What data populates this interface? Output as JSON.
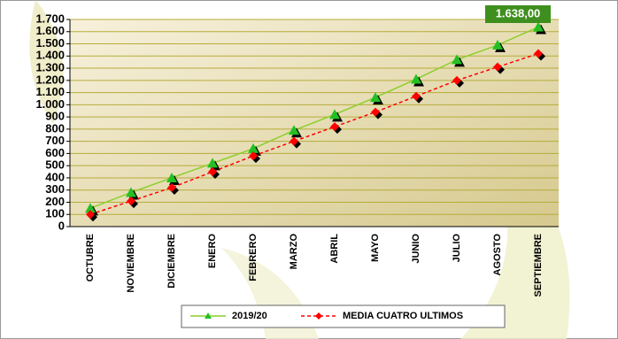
{
  "chart_data": {
    "type": "line",
    "categories": [
      "OCTUBRE",
      "NOVIEMBRE",
      "DICIEMBRE",
      "ENERO",
      "FEBRERO",
      "MARZO",
      "ABRIL",
      "MAYO",
      "JUNIO",
      "JULIO",
      "AGOSTO",
      "SEPTIEMBRE"
    ],
    "series": [
      {
        "name": "2019/20",
        "color": "#8ccf2a",
        "marker_color": "#22c022",
        "dashed": false,
        "values": [
          150,
          280,
          400,
          520,
          640,
          790,
          920,
          1060,
          1210,
          1370,
          1490,
          1638
        ],
        "value_labels": [
          null,
          null,
          null,
          null,
          null,
          null,
          null,
          null,
          null,
          null,
          null,
          "1.638,00"
        ]
      },
      {
        "name": "MEDIA CUATRO ULTIMOS",
        "color": "#ff0000",
        "marker_color": "#ff0000",
        "dashed": true,
        "values": [
          100,
          210,
          320,
          450,
          580,
          700,
          820,
          940,
          1070,
          1200,
          1310,
          1420
        ]
      }
    ],
    "ylim": [
      0,
      1700
    ],
    "yticks": [
      0,
      100,
      200,
      300,
      400,
      500,
      600,
      700,
      800,
      900,
      {
        "value": 1000,
        "label": "1.000"
      },
      {
        "value": 1100,
        "label": "1.100"
      },
      {
        "value": 1200,
        "label": "1.200"
      },
      {
        "value": 1300,
        "label": "1.300"
      },
      {
        "value": 1400,
        "label": "1.400"
      },
      {
        "value": 1500,
        "label": "1.500"
      },
      {
        "value": 1600,
        "label": "1.600"
      },
      {
        "value": 1700,
        "label": "1.700"
      }
    ],
    "grid": true,
    "legend": "bottom"
  }
}
